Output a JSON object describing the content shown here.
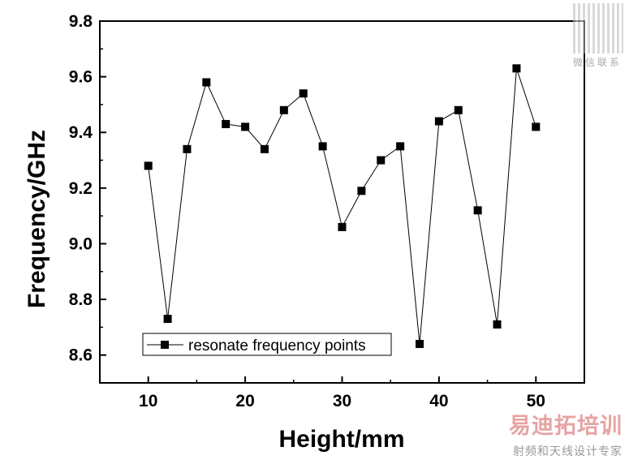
{
  "chart_data": {
    "type": "line",
    "title": "",
    "xlabel": "Height/mm",
    "ylabel": "Frequency/GHz",
    "xlim": [
      5,
      55
    ],
    "ylim": [
      8.5,
      9.8
    ],
    "xticks": [
      10,
      20,
      30,
      40,
      50
    ],
    "yticks": [
      8.6,
      8.8,
      9.0,
      9.2,
      9.4,
      9.6,
      9.8
    ],
    "xtick_labels": [
      "10",
      "20",
      "30",
      "40",
      "50"
    ],
    "ytick_labels": [
      "8.6",
      "8.8",
      "9.0",
      "9.2",
      "9.4",
      "9.6",
      "9.8"
    ],
    "grid": false,
    "legend_position": "bottom-left",
    "series": [
      {
        "name": "resonate frequency points",
        "marker": "square",
        "color": "#000000",
        "x": [
          10,
          12,
          14,
          16,
          18,
          20,
          22,
          24,
          26,
          28,
          30,
          32,
          34,
          36,
          38,
          40,
          42,
          44,
          46,
          48,
          50
        ],
        "y": [
          9.28,
          8.73,
          9.34,
          9.58,
          9.43,
          9.42,
          9.34,
          9.48,
          9.54,
          9.35,
          9.06,
          9.19,
          9.3,
          9.35,
          8.64,
          9.44,
          9.48,
          9.12,
          8.71,
          9.63,
          9.42
        ]
      }
    ]
  },
  "watermark": {
    "qr_label": "微信联系",
    "brand": "易迪拓培训",
    "subtitle": "射频和天线设计专家"
  }
}
